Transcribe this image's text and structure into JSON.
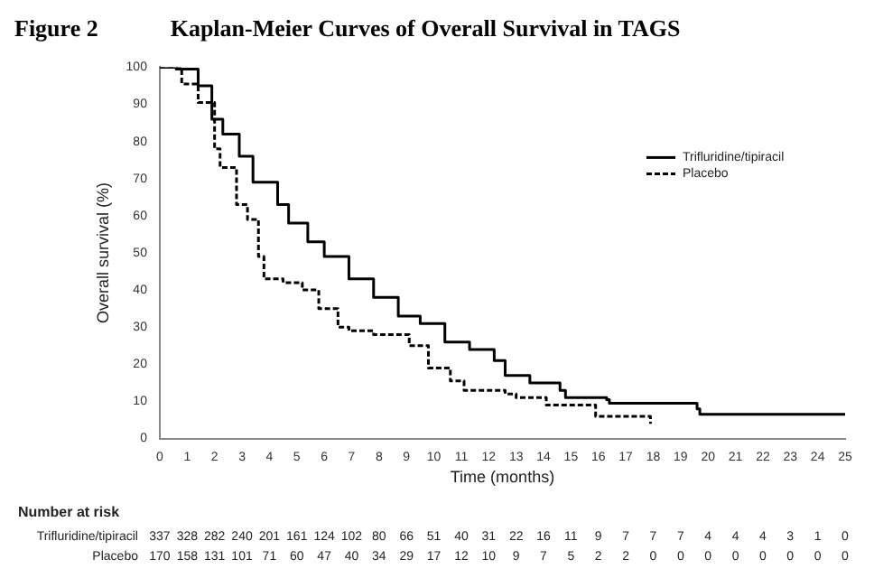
{
  "chart_data": {
    "type": "step",
    "title": "Kaplan-Meier Curves of Overall Survival in TAGS",
    "xlabel": "Time (months)",
    "ylabel": "Overall survival (%)",
    "annotations": [
      "Figure 2",
      "Number at risk",
      "337 328 282 240 201 161 124 102 80 66 51 40 31 22 16 11 9 7 7 7 4 4 4 3 1 0",
      "170 158 131 101 71 60 47 40 34 29 17 12 10 9 7 5 2 2 0 0 0 0 0 0 0 0"
    ],
    "xlim": [
      0,
      25
    ],
    "xticks": [
      0,
      1,
      2,
      3,
      4,
      5,
      6,
      7,
      8,
      9,
      10,
      11,
      12,
      13,
      14,
      15,
      16,
      17,
      18,
      19,
      20,
      21,
      22,
      23,
      24,
      25
    ],
    "ylim": [
      0,
      100
    ],
    "yticks": [
      0,
      10,
      20,
      30,
      40,
      50,
      60,
      70,
      80,
      90,
      100
    ],
    "grid": false,
    "legend": "top right",
    "marker": "none",
    "series": [
      {
        "name": "Trifluridine/tipiracil",
        "color": "#000000",
        "line_style": "solid",
        "x": [
          0,
          0.6,
          1.4,
          1.9,
          2.3,
          2.9,
          3.4,
          4.3,
          4.7,
          5.4,
          6.0,
          6.9,
          7.8,
          8.7,
          9.5,
          10.4,
          11.3,
          12.2,
          12.6,
          13.5,
          14.6,
          14.8,
          16.3,
          16.4,
          19.4,
          19.6,
          19.7,
          25
        ],
        "values": [
          100,
          99.5,
          95,
          86,
          82,
          76,
          69,
          63,
          58,
          53,
          49,
          43,
          38,
          33,
          31,
          26,
          24,
          21,
          17,
          15,
          13,
          11,
          10.5,
          9.5,
          9.5,
          8,
          6.5,
          6.5
        ]
      },
      {
        "name": "Placebo",
        "color": "#000000",
        "line_style": "dashed",
        "x": [
          0,
          0.8,
          1.4,
          2.0,
          2.2,
          2.8,
          3.2,
          3.6,
          3.8,
          4.5,
          5.2,
          5.8,
          6.5,
          6.9,
          7.8,
          9.1,
          9.8,
          10.6,
          11.1,
          12.6,
          13.0,
          14.1,
          15.9,
          17.8,
          17.9
        ],
        "values": [
          100,
          95.5,
          90.5,
          78,
          73,
          63,
          59,
          49,
          43,
          42,
          40,
          35,
          30,
          29,
          28,
          25,
          19,
          15.5,
          13,
          12,
          11,
          9,
          6,
          6,
          4
        ]
      }
    ]
  }
}
